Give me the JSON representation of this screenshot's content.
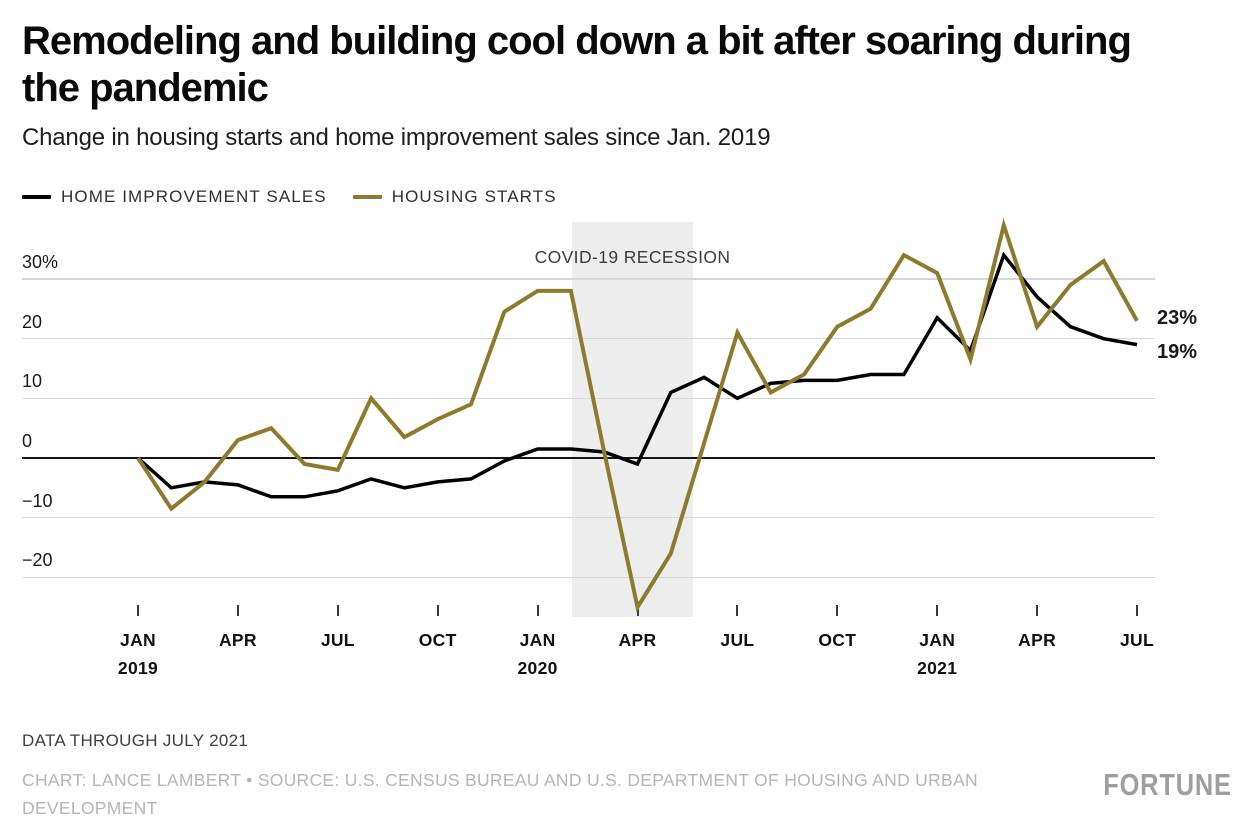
{
  "header": {
    "title": "Remodeling and building cool down a bit after soaring during the pandemic",
    "subtitle": "Change in housing starts and home improvement sales since Jan. 2019"
  },
  "chart_data": {
    "type": "line",
    "title": "Remodeling and building cool down a bit after soaring during the pandemic",
    "x_unit": "month",
    "x_range": [
      "Jan 2019",
      "Jul 2021"
    ],
    "ylim": [
      -27,
      41
    ],
    "grid": "horizontal",
    "y_axis": {
      "tick_labels": [
        "30%",
        "20",
        "10",
        "0",
        "−10",
        "−20"
      ],
      "tick_values": [
        30,
        20,
        10,
        0,
        -10,
        -20
      ]
    },
    "x_axis": {
      "ticks": [
        {
          "month": "JAN",
          "year": "2019"
        },
        {
          "month": "APR"
        },
        {
          "month": "JUL"
        },
        {
          "month": "OCT"
        },
        {
          "month": "JAN",
          "year": "2020"
        },
        {
          "month": "APR"
        },
        {
          "month": "JUL"
        },
        {
          "month": "OCT"
        },
        {
          "month": "JAN",
          "year": "2021"
        },
        {
          "month": "APR"
        },
        {
          "month": "JUL"
        }
      ]
    },
    "annotation": {
      "label": "COVID-19 RECESSION",
      "band_start_month_index": 13.03,
      "band_end_month_index": 16.67
    },
    "months": [
      "Jan 2019",
      "Feb 2019",
      "Mar 2019",
      "Apr 2019",
      "May 2019",
      "Jun 2019",
      "Jul 2019",
      "Aug 2019",
      "Sep 2019",
      "Oct 2019",
      "Nov 2019",
      "Dec 2019",
      "Jan 2020",
      "Feb 2020",
      "Mar 2020",
      "Apr 2020",
      "May 2020",
      "Jun 2020",
      "Jul 2020",
      "Aug 2020",
      "Sep 2020",
      "Oct 2020",
      "Nov 2020",
      "Dec 2020",
      "Jan 2021",
      "Feb 2021",
      "Mar 2021",
      "Apr 2021",
      "May 2021",
      "Jun 2021",
      "Jul 2021"
    ],
    "series": [
      {
        "name": "HOME IMPROVEMENT SALES",
        "color": "#000000",
        "stroke_width": 3.5,
        "end_label": "19%",
        "values": [
          0,
          -5,
          -4,
          -4.5,
          -6.5,
          -6.5,
          -5.5,
          -3.5,
          -5,
          -4,
          -3.5,
          -0.5,
          1.5,
          1.5,
          1,
          -1,
          11,
          13.5,
          10,
          12.5,
          13,
          13,
          14,
          14,
          23.5,
          18,
          34,
          27,
          22,
          20,
          19
        ]
      },
      {
        "name": "HOUSING STARTS",
        "color": "#8d7b2d",
        "stroke_width": 4,
        "end_label": "23%",
        "values": [
          0,
          -8.5,
          -4,
          3,
          5,
          -1,
          -2,
          10,
          3.5,
          6.5,
          9,
          24.5,
          28,
          28,
          1,
          -25,
          -16,
          2.5,
          21,
          11,
          14,
          22,
          25,
          34,
          31,
          16.5,
          39,
          22,
          29,
          33,
          23
        ]
      }
    ]
  },
  "footer": {
    "note": "DATA THROUGH JULY 2021",
    "credit": "CHART: LANCE LAMBERT • SOURCE: U.S. CENSUS BUREAU AND U.S. DEPARTMENT OF HOUSING AND URBAN DEVELOPMENT",
    "logo": "FORTUNE"
  }
}
